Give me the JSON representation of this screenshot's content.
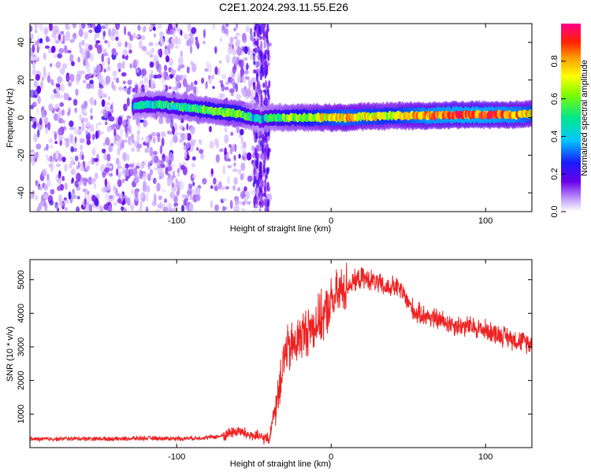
{
  "title": "C2E1.2024.293.11.55.E26",
  "colors": {
    "snr_line": "#ee2222",
    "axis": "#000000"
  },
  "chart_data": [
    {
      "type": "heatmap",
      "title": "C2E1.2024.293.11.55.E26",
      "xlabel": "Height of straight line (km)",
      "ylabel": "Frequency (Hz)",
      "xlim": [
        -195,
        130
      ],
      "ylim": [
        -50,
        50
      ],
      "xticks": [
        -100,
        0,
        100
      ],
      "xtick_labels": [
        "-100",
        "0",
        "100"
      ],
      "yticks": [
        -40,
        -20,
        0,
        20,
        40
      ],
      "ytick_labels": [
        "-40",
        "-20",
        "0",
        "20",
        "40"
      ],
      "colorbar": {
        "label": "Normalized spectral amplitude",
        "range": [
          0,
          1
        ],
        "ticks": [
          0,
          0.2,
          0.4,
          0.6,
          0.8
        ],
        "tick_labels": [
          "0.0",
          "0.2",
          "0.4",
          "0.6",
          "0.8"
        ]
      },
      "ridge": {
        "x": [
          -128,
          -120,
          -110,
          -100,
          -90,
          -80,
          -70,
          -60,
          -55,
          -50,
          -45,
          -40,
          -30,
          -20,
          -10,
          0,
          10,
          20,
          40,
          60,
          80,
          100,
          120,
          130
        ],
        "freq": [
          6,
          7,
          7,
          6,
          5,
          4,
          3,
          2,
          1,
          0,
          -1,
          0,
          0,
          0,
          0,
          0,
          0,
          0.5,
          1,
          1,
          1.5,
          1.5,
          1.5,
          2
        ],
        "amplitude": [
          0.35,
          0.4,
          0.45,
          0.45,
          0.5,
          0.55,
          0.55,
          0.6,
          0.5,
          0.4,
          0.35,
          0.45,
          0.55,
          0.6,
          0.65,
          0.7,
          0.75,
          0.7,
          0.65,
          0.8,
          0.85,
          0.85,
          0.8,
          0.7
        ]
      }
    },
    {
      "type": "line",
      "xlabel": "Height of straight line (km)",
      "ylabel": "SNR (10 * v/v)",
      "xlim": [
        -195,
        130
      ],
      "ylim": [
        0,
        5600
      ],
      "xticks": [
        -100,
        0,
        100
      ],
      "xtick_labels": [
        "-100",
        "0",
        "100"
      ],
      "yticks": [
        1000,
        2000,
        3000,
        4000,
        5000
      ],
      "ytick_labels": [
        "1000",
        "2000",
        "3000",
        "4000",
        "5000"
      ],
      "series": [
        {
          "name": "SNR",
          "x": [
            -195,
            -180,
            -160,
            -140,
            -120,
            -100,
            -90,
            -80,
            -70,
            -65,
            -60,
            -55,
            -50,
            -45,
            -40,
            -38,
            -35,
            -32,
            -30,
            -25,
            -20,
            -15,
            -10,
            -5,
            0,
            5,
            10,
            15,
            20,
            25,
            30,
            35,
            40,
            45,
            50,
            55,
            60,
            70,
            80,
            90,
            100,
            110,
            120,
            130
          ],
          "y": [
            250,
            260,
            270,
            260,
            280,
            270,
            280,
            300,
            350,
            450,
            500,
            400,
            350,
            300,
            250,
            800,
            1500,
            2300,
            2800,
            3000,
            3300,
            3500,
            3700,
            3900,
            4300,
            4600,
            4800,
            4950,
            5050,
            5000,
            4900,
            4750,
            4800,
            4700,
            4300,
            4000,
            3950,
            3800,
            3650,
            3600,
            3500,
            3350,
            3200,
            3100
          ]
        }
      ]
    }
  ]
}
